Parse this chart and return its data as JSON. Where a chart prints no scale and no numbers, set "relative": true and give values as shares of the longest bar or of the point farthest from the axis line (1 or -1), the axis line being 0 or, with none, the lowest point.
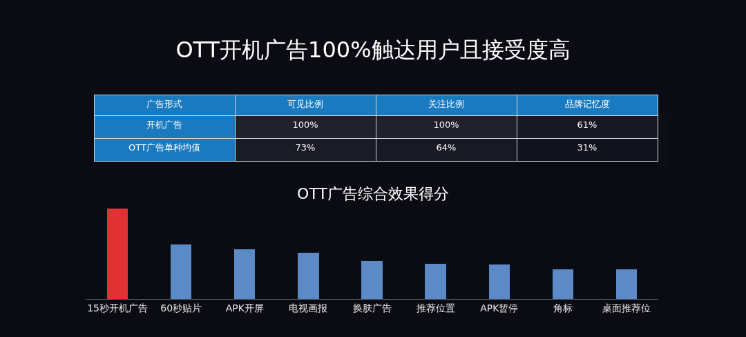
{
  "chart_data": [
    {
      "type": "heatmap",
      "title": "OTT开机广告100%触达用户且接受度高",
      "ylabel": "广告形式",
      "categories": [
        "可见比例",
        "关注比例",
        "品牌记忆度"
      ],
      "y_categories": [
        "开机广告",
        "OTT广告单种均值"
      ],
      "cells": [
        [
          100,
          100,
          61
        ],
        [
          73,
          64,
          31
        ]
      ],
      "cell_labels": [
        [
          "100%",
          "100%",
          "61%"
        ],
        [
          "73%",
          "64%",
          "31%"
        ]
      ]
    },
    {
      "type": "bar",
      "title": "OTT广告综合效果得分",
      "relative": true,
      "categories": [
        "15秒开机广告",
        "60秒贴片",
        "APK开屏",
        "电视画报",
        "换肤广告",
        "推荐位置",
        "APK暂停",
        "角标",
        "桌面推荐位"
      ],
      "values": [
        1,
        0.6,
        0.55,
        0.51,
        0.42,
        0.39,
        0.38,
        0.33,
        0.33
      ],
      "colors": [
        "#e03232",
        "#5b8ac6",
        "#5b8ac6",
        "#5b8ac6",
        "#5b8ac6",
        "#5b8ac6",
        "#5b8ac6",
        "#5b8ac6",
        "#5b8ac6"
      ]
    }
  ]
}
